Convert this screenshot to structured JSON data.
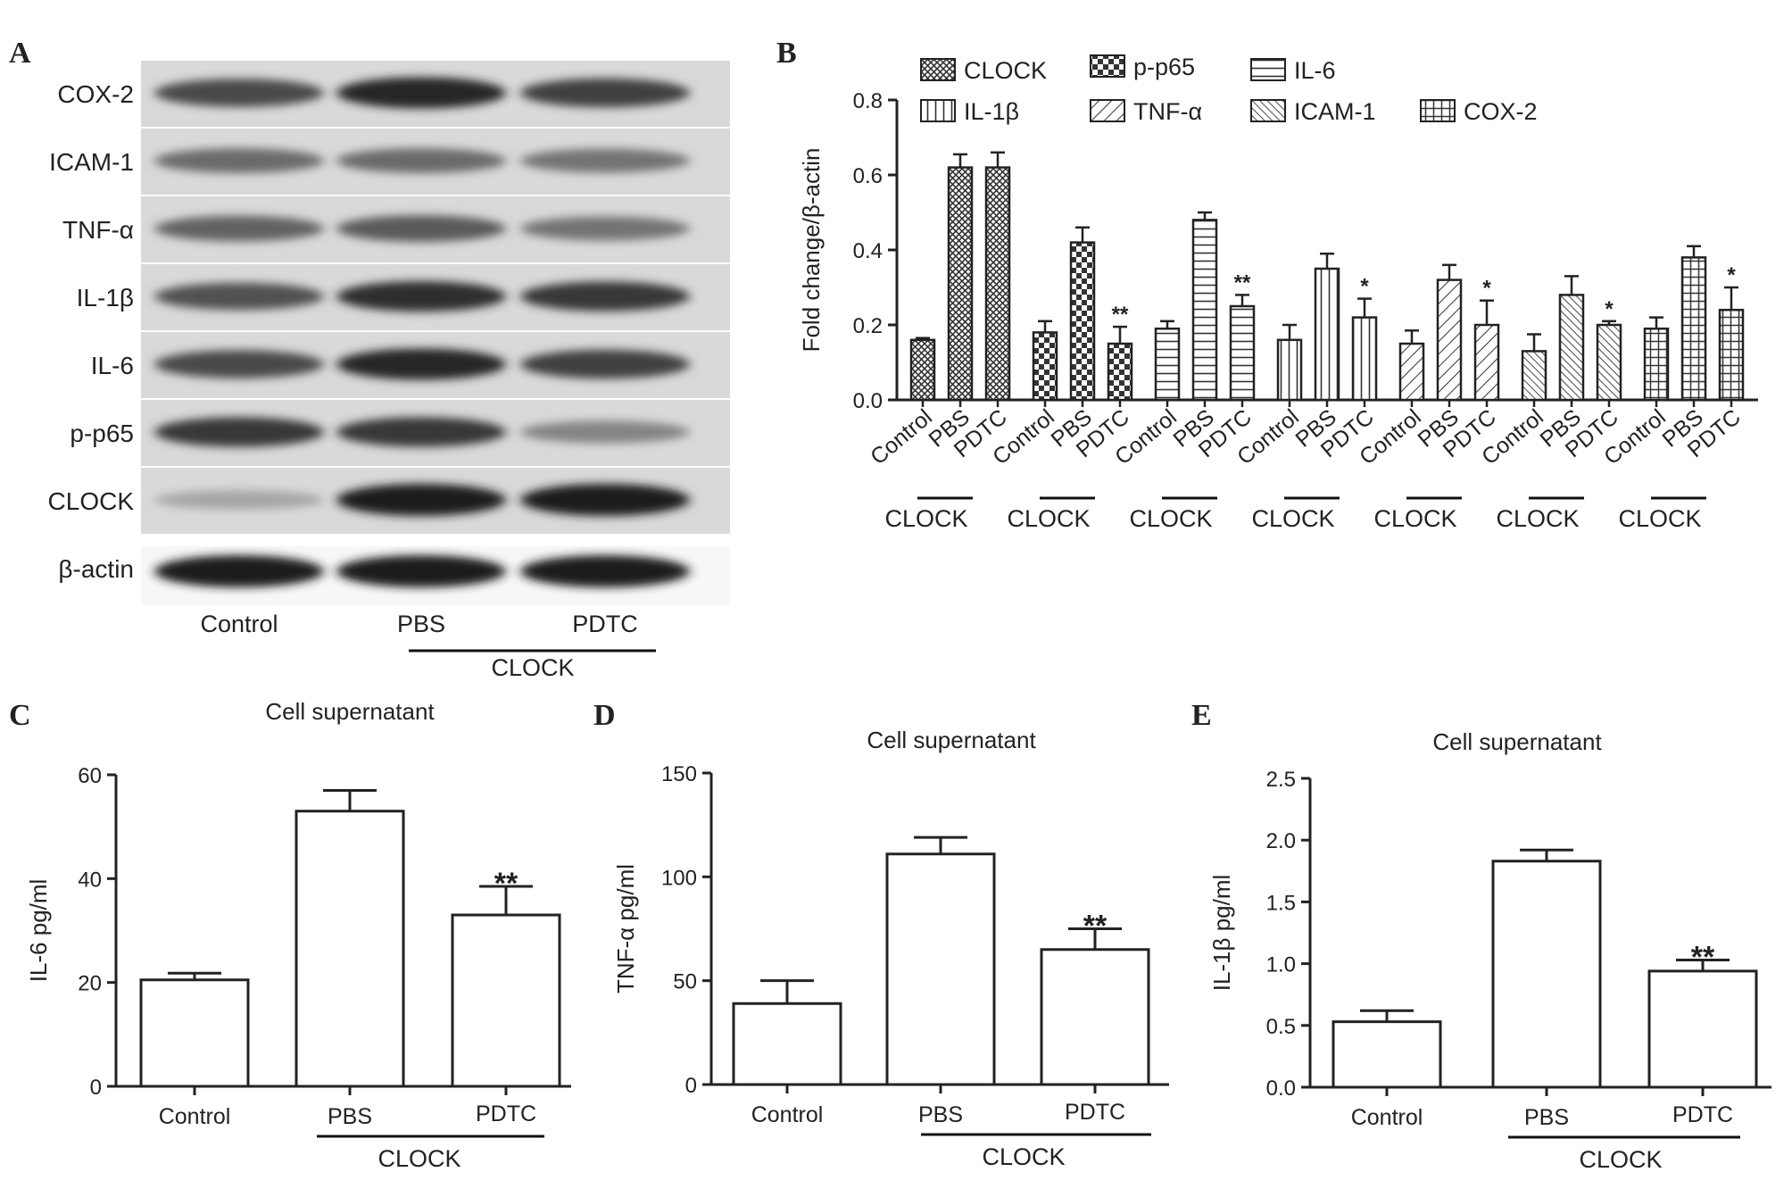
{
  "panels": {
    "A": "A",
    "B": "B",
    "C": "C",
    "D": "D",
    "E": "E"
  },
  "blot": {
    "bands": [
      "COX-2",
      "ICAM-1",
      "TNF-α",
      "IL-1β",
      "IL-6",
      "p-p65",
      "CLOCK",
      "β-actin"
    ],
    "intensities": [
      [
        0.75,
        0.95,
        0.8
      ],
      [
        0.55,
        0.55,
        0.5
      ],
      [
        0.6,
        0.65,
        0.5
      ],
      [
        0.7,
        0.9,
        0.85
      ],
      [
        0.75,
        0.95,
        0.8
      ],
      [
        0.85,
        0.85,
        0.4
      ],
      [
        0.2,
        1.0,
        1.0
      ],
      [
        1.0,
        1.0,
        1.0
      ]
    ],
    "lanes": [
      "Control",
      "PBS",
      "PDTC"
    ],
    "group_label": "CLOCK"
  },
  "chart_data": [
    {
      "panel": "B",
      "type": "bar",
      "ylabel": "Fold change/β-actin",
      "ylim": [
        0,
        0.8
      ],
      "yticks": [
        "0.0",
        "0.2",
        "0.4",
        "0.6",
        "0.8"
      ],
      "grid": false,
      "legend_position": "top",
      "categories": [
        "Control",
        "PBS",
        "PDTC"
      ],
      "group_label": "CLOCK",
      "series": [
        {
          "name": "CLOCK",
          "pattern": "dense-cross",
          "values": [
            0.16,
            0.62,
            0.62
          ],
          "errors": [
            0.005,
            0.035,
            0.04
          ],
          "stars": [
            "",
            "",
            ""
          ]
        },
        {
          "name": "p-p65",
          "pattern": "checker",
          "values": [
            0.18,
            0.42,
            0.15
          ],
          "errors": [
            0.03,
            0.04,
            0.045
          ],
          "stars": [
            "",
            "",
            "**"
          ]
        },
        {
          "name": "IL-6",
          "pattern": "horizontal",
          "values": [
            0.19,
            0.48,
            0.25
          ],
          "errors": [
            0.02,
            0.02,
            0.03
          ],
          "stars": [
            "",
            "",
            "**"
          ]
        },
        {
          "name": "IL-1β",
          "pattern": "vertical",
          "values": [
            0.16,
            0.35,
            0.22
          ],
          "errors": [
            0.04,
            0.04,
            0.05
          ],
          "stars": [
            "",
            "",
            "*"
          ]
        },
        {
          "name": "TNF-α",
          "pattern": "diagonal",
          "values": [
            0.15,
            0.32,
            0.2
          ],
          "errors": [
            0.035,
            0.04,
            0.065
          ],
          "stars": [
            "",
            "",
            "*"
          ]
        },
        {
          "name": "ICAM-1",
          "pattern": "diagonal-dense",
          "values": [
            0.13,
            0.28,
            0.2
          ],
          "errors": [
            0.045,
            0.05,
            0.01
          ],
          "stars": [
            "",
            "",
            "*"
          ]
        },
        {
          "name": "COX-2",
          "pattern": "grid",
          "values": [
            0.19,
            0.38,
            0.24
          ],
          "errors": [
            0.03,
            0.03,
            0.06
          ],
          "stars": [
            "",
            "",
            "*"
          ]
        }
      ]
    },
    {
      "panel": "C",
      "type": "bar",
      "title": "Cell supernatant",
      "ylabel": "IL-6 pg/ml",
      "ylim": [
        0,
        60
      ],
      "yticks": [
        "0",
        "20",
        "40",
        "60"
      ],
      "categories": [
        "Control",
        "PBS",
        "PDTC"
      ],
      "values": [
        20.5,
        53,
        33
      ],
      "errors": [
        1.3,
        4,
        5.5
      ],
      "stars": [
        "",
        "",
        "**"
      ],
      "group_label": "CLOCK"
    },
    {
      "panel": "D",
      "type": "bar",
      "title": "Cell supernatant",
      "ylabel": "TNF-α pg/ml",
      "ylim": [
        0,
        150
      ],
      "yticks": [
        "0",
        "50",
        "100",
        "150"
      ],
      "categories": [
        "Control",
        "PBS",
        "PDTC"
      ],
      "values": [
        39,
        111,
        65
      ],
      "errors": [
        11,
        8,
        10
      ],
      "stars": [
        "",
        "",
        "**"
      ],
      "group_label": "CLOCK"
    },
    {
      "panel": "E",
      "type": "bar",
      "title": "Cell supernatant",
      "ylabel": "IL-1β pg/ml",
      "ylim": [
        0,
        2.5
      ],
      "yticks": [
        "0.0",
        "0.5",
        "1.0",
        "1.5",
        "2.0",
        "2.5"
      ],
      "categories": [
        "Control",
        "PBS",
        "PDTC"
      ],
      "values": [
        0.53,
        1.83,
        0.94
      ],
      "errors": [
        0.09,
        0.09,
        0.09
      ],
      "stars": [
        "",
        "",
        "**"
      ],
      "group_label": "CLOCK"
    }
  ]
}
